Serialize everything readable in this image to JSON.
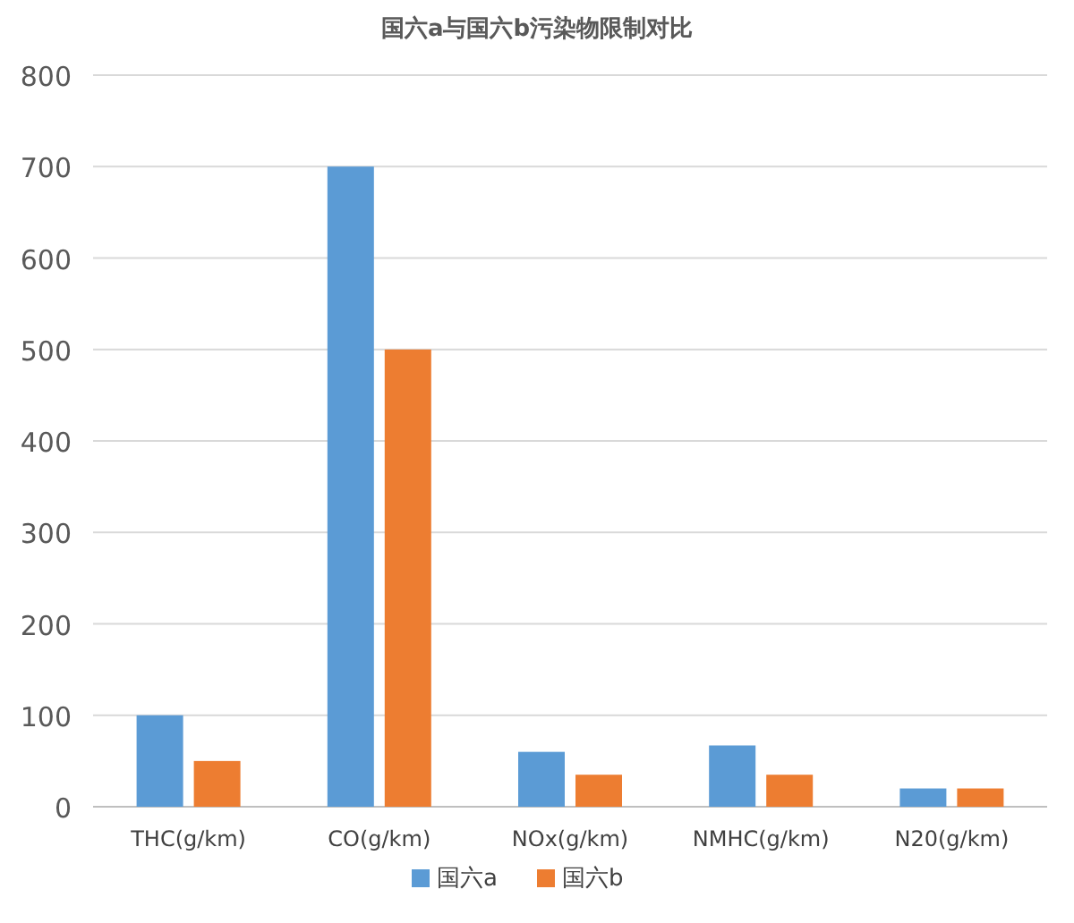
{
  "chart_data": {
    "type": "bar",
    "title": "国六a与国六b污染物限制对比",
    "categories": [
      "THC(g/km)",
      "CO(g/km)",
      "NOx(g/km)",
      "NMHC(g/km)",
      "N20(g/km)"
    ],
    "series": [
      {
        "name": "国六a",
        "color": "#5b9bd5",
        "values": [
          100,
          700,
          60,
          67,
          20
        ]
      },
      {
        "name": "国六b",
        "color": "#ed7d31",
        "values": [
          50,
          500,
          35,
          35,
          20
        ]
      }
    ],
    "ylim": [
      0,
      800
    ],
    "yticks": [
      0,
      100,
      200,
      300,
      400,
      500,
      600,
      700,
      800
    ],
    "grid": "y",
    "legend": "bottom"
  }
}
